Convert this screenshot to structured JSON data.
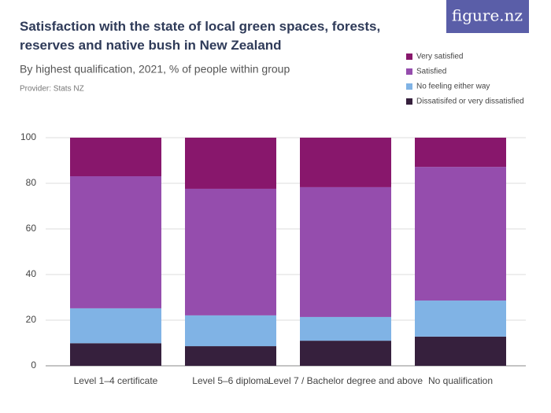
{
  "brand": "figure.nz",
  "chart_data": {
    "type": "stacked-bar",
    "title": "Satisfaction with the state of local green spaces, forests, reserves and native bush in New Zealand",
    "subtitle": "By highest qualification, 2021, % of people within group",
    "provider": "Provider: Stats NZ",
    "categories": [
      "Level 1–4 certificate",
      "Level 5–6 diploma",
      "Level 7 / Bachelor degree and above",
      "No qualification"
    ],
    "series": [
      {
        "name": "Dissatisifed or very dissatisfied",
        "color": "#36203d",
        "values": [
          9.9,
          8.6,
          11.0,
          12.8
        ]
      },
      {
        "name": "No feeling either way",
        "color": "#80b3e5",
        "values": [
          15.3,
          13.5,
          10.4,
          15.8
        ]
      },
      {
        "name": "Satisfied",
        "color": "#954dad",
        "values": [
          57.9,
          55.5,
          56.9,
          58.6
        ]
      },
      {
        "name": "Very satisfied",
        "color": "#88176c",
        "values": [
          16.9,
          22.4,
          21.7,
          12.8
        ]
      }
    ],
    "ylim": [
      0,
      100
    ],
    "yticks": [
      0,
      20,
      40,
      60,
      80,
      100
    ],
    "grid": true
  }
}
